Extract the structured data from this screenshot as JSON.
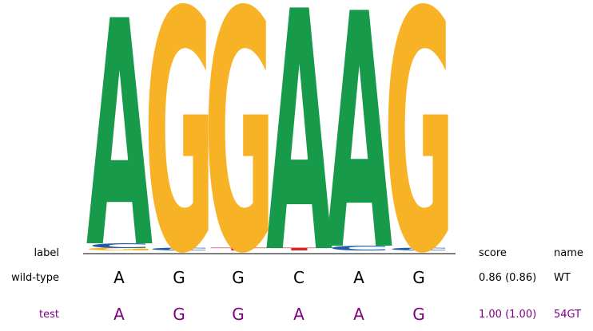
{
  "colors": {
    "A": "#179A4A",
    "G": "#F8B226",
    "C": "#1F5BA8",
    "T": "#D62728",
    "test_text": "#800080",
    "default_text": "#000000"
  },
  "chart_data": {
    "type": "sequence-logo",
    "positions": [
      1,
      2,
      3,
      4,
      5,
      6
    ],
    "letter_heights": [
      [
        {
          "base": "A",
          "height": 0.94
        },
        {
          "base": "C",
          "height": 0.02
        },
        {
          "base": "G",
          "height": 0.01
        }
      ],
      [
        {
          "base": "G",
          "height": 1.0
        },
        {
          "base": "C",
          "height": 0.01
        }
      ],
      [
        {
          "base": "G",
          "height": 1.0
        },
        {
          "base": "T",
          "height": 0.01
        }
      ],
      [
        {
          "base": "A",
          "height": 1.0
        },
        {
          "base": "T",
          "height": 0.01
        }
      ],
      [
        {
          "base": "A",
          "height": 0.98
        },
        {
          "base": "C",
          "height": 0.02
        }
      ],
      [
        {
          "base": "G",
          "height": 1.0
        },
        {
          "base": "C",
          "height": 0.01
        }
      ]
    ],
    "ylim": [
      0,
      1.0
    ]
  },
  "table": {
    "header": {
      "label": "label",
      "score": "score",
      "name": "name"
    },
    "rows": [
      {
        "label": "wild-type",
        "sequence": [
          "A",
          "G",
          "G",
          "C",
          "A",
          "G"
        ],
        "score": "0.86 (0.86)",
        "name": "WT",
        "style": "default"
      },
      {
        "label": "test",
        "sequence": [
          "A",
          "G",
          "G",
          "A",
          "A",
          "G"
        ],
        "score": "1.00 (1.00)",
        "name": "54GT",
        "style": "test"
      }
    ]
  }
}
